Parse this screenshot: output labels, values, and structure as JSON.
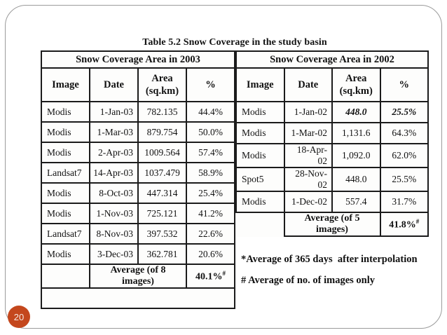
{
  "page_number": "20",
  "title": {
    "prefix": "Table 5.2",
    "text": "Snow Coverage in the study basin"
  },
  "tables": [
    {
      "caption": "Snow Coverage Area in 2003",
      "columns": [
        "Image",
        "Date",
        "Area\n(sq.km)",
        "%"
      ],
      "rows": [
        {
          "cells": [
            "Modis",
            "1-Jan-03",
            "782.135",
            "44.4%"
          ]
        },
        {
          "cells": [
            "Modis",
            "1-Mar-03",
            "879.754",
            "50.0%"
          ]
        },
        {
          "cells": [
            "Modis",
            "2-Apr-03",
            "1009.564",
            "57.4%"
          ]
        },
        {
          "cells": [
            "Landsat7",
            "14-Apr-03",
            "1037.479",
            "58.9%"
          ]
        },
        {
          "cells": [
            "Modis",
            "8-Oct-03",
            "447.314",
            "25.4%"
          ]
        },
        {
          "cells": [
            "Modis",
            "1-Nov-03",
            "725.121",
            "41.2%"
          ]
        },
        {
          "cells": [
            "Landsat7",
            "8-Nov-03",
            "397.532",
            "22.6%"
          ]
        },
        {
          "cells": [
            "Modis",
            "3-Dec-03",
            "362.781",
            "20.6%"
          ]
        }
      ],
      "average_label": "Average (of 8 images)",
      "average_value": "40.1%",
      "average_sup": "#"
    },
    {
      "caption": "Snow Coverage Area in 2002",
      "columns": [
        "Image",
        "Date",
        "Area\n(sq.km)",
        "%"
      ],
      "rows": [
        {
          "cells": [
            "Modis",
            "1-Jan-02",
            "448.0",
            "25.5%"
          ],
          "italic": true
        },
        {
          "cells": [
            "Modis",
            "1-Mar-02",
            "1,131.6",
            "64.3%"
          ]
        },
        {
          "cells": [
            "Modis",
            "18-Apr-02",
            "1,092.0",
            "62.0%"
          ]
        },
        {
          "cells": [
            "Spot5",
            "28-Nov-02",
            "448.0",
            "25.5%"
          ]
        },
        {
          "cells": [
            "Modis",
            "1-Dec-02",
            "557.4",
            "31.7%"
          ]
        }
      ],
      "average_label": "Average (of 5 images)",
      "average_value": "41.8%",
      "average_sup": "#"
    }
  ],
  "notes": [
    "*Average of 365 days  after interpolation",
    "# Average of no. of images only"
  ],
  "colors": {
    "badge": "#c4471d",
    "table_border": "#1b1b1b",
    "slide_border": "#9b9b9b"
  }
}
